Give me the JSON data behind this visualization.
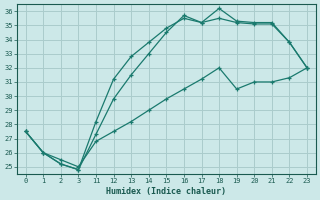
{
  "xlabel": "Humidex (Indice chaleur)",
  "bg_color": "#cce8e8",
  "grid_color": "#aacccc",
  "line_color": "#1a7a6e",
  "tick_color": "#1a5a50",
  "label_color": "#1a5a50",
  "ylim": [
    24.5,
    36.5
  ],
  "yticks": [
    25,
    26,
    27,
    28,
    29,
    30,
    31,
    32,
    33,
    34,
    35,
    36
  ],
  "x_indices": [
    0,
    1,
    2,
    3,
    4,
    5,
    6,
    7,
    8,
    9,
    10,
    11,
    12,
    13,
    14,
    15,
    16
  ],
  "x_labels_map": {
    "0": "0",
    "1": "1",
    "2": "2",
    "3": "3",
    "4": "11",
    "5": "12",
    "6": "13",
    "7": "14",
    "8": "15",
    "9": "16",
    "10": "17",
    "11": "18",
    "12": "19",
    "13": "20",
    "14": "21",
    "15": "22",
    "16": "23"
  },
  "xtick_positions": [
    0,
    1,
    2,
    3,
    4,
    5,
    6,
    7,
    8,
    9,
    10,
    11,
    12,
    13,
    14,
    15,
    16
  ],
  "xlim": [
    -0.5,
    16.5
  ],
  "line1_y": [
    27.5,
    26.0,
    25.2,
    24.8,
    28.2,
    31.2,
    32.8,
    33.8,
    34.8,
    35.5,
    35.2,
    36.2,
    35.3,
    35.2,
    35.2,
    33.8,
    32.0
  ],
  "line2_y": [
    27.5,
    26.0,
    25.2,
    24.8,
    27.3,
    29.8,
    31.5,
    33.0,
    34.5,
    35.7,
    35.2,
    35.5,
    35.2,
    35.1,
    35.1,
    33.8,
    32.0
  ],
  "line3_y": [
    27.5,
    26.0,
    25.5,
    25.0,
    26.8,
    27.5,
    28.2,
    29.0,
    29.8,
    30.5,
    31.2,
    32.0,
    30.5,
    31.0,
    31.0,
    31.3,
    32.0
  ],
  "markersize": 3,
  "linewidth": 0.9
}
